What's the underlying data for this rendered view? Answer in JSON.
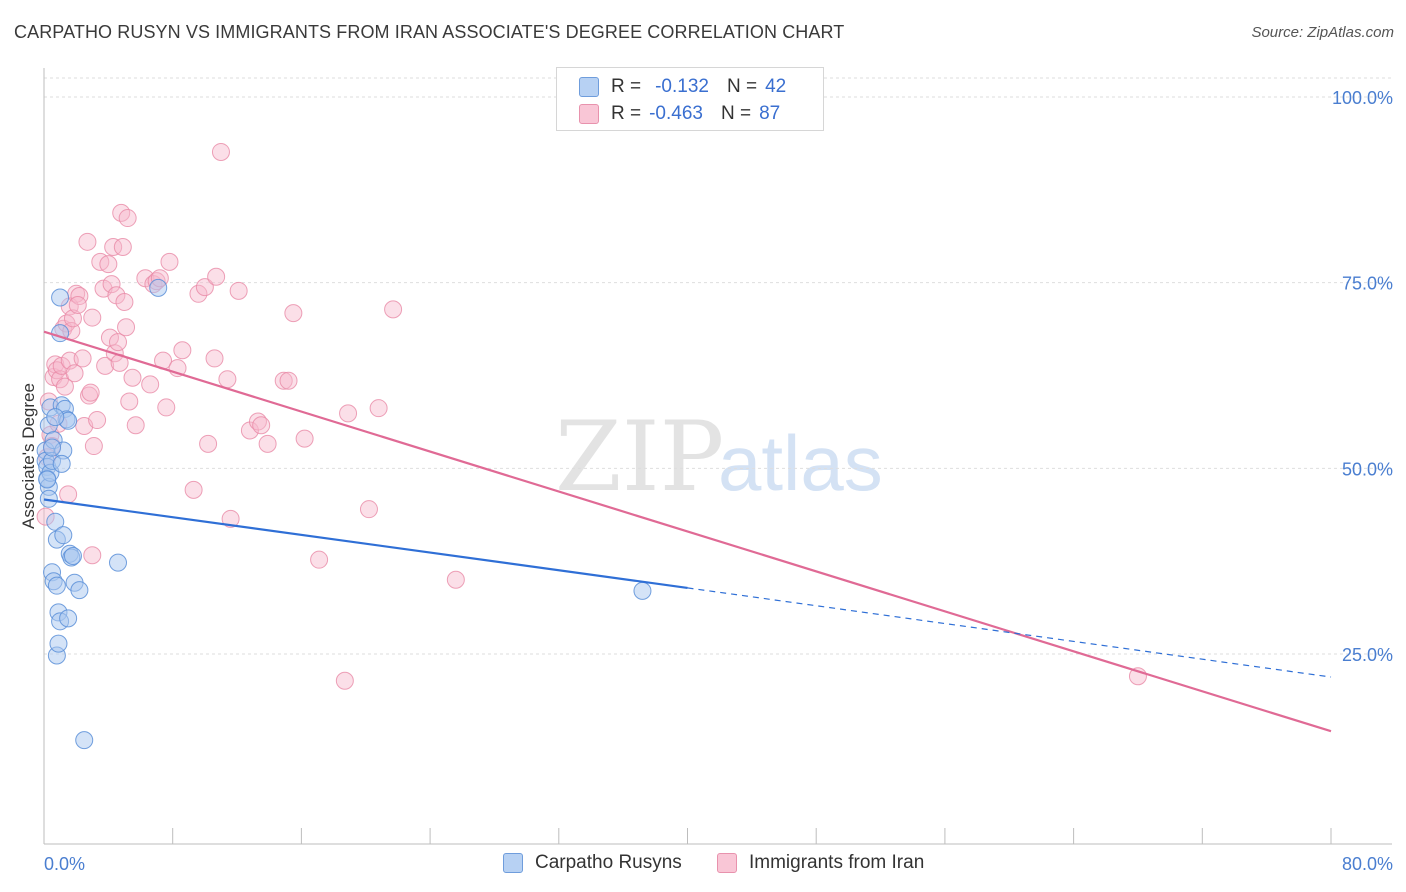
{
  "header": {
    "title": "CARPATHO RUSYN VS IMMIGRANTS FROM IRAN ASSOCIATE'S DEGREE CORRELATION CHART",
    "source": "Source: ZipAtlas.com"
  },
  "legend_top": {
    "rows": [
      {
        "r_label": "R =",
        "r_value": "-0.132",
        "n_label": "N =",
        "n_value": "42"
      },
      {
        "r_label": "R =",
        "r_value": "-0.463",
        "n_label": "N =",
        "n_value": "87"
      }
    ]
  },
  "legend_bottom": {
    "items": [
      {
        "label": "Carpatho Rusyns"
      },
      {
        "label": "Immigrants from Iran"
      }
    ]
  },
  "watermark": {
    "zip": "ZIP",
    "atlas": "atlas"
  },
  "colors": {
    "blue_fill": "#a9c8f0",
    "blue_stroke": "#5a8fd8",
    "blue_line": "#2f6fd6",
    "pink_fill": "#f6b9cb",
    "pink_stroke": "#e88aa6",
    "pink_line": "#e06a95",
    "tick_text": "#4a7ed0",
    "grid": "#dedede"
  },
  "chart_data": {
    "type": "scatter",
    "title": "CARPATHO RUSYN VS IMMIGRANTS FROM IRAN ASSOCIATE'S DEGREE CORRELATION CHART",
    "xlabel": "",
    "ylabel": "Associate's Degree",
    "xlim": [
      0,
      80
    ],
    "ylim": [
      0,
      100
    ],
    "x_tick_labels": [
      "0.0%",
      "80.0%"
    ],
    "y_ticks": [
      25,
      50,
      75,
      100
    ],
    "y_tick_labels": [
      "25.0%",
      "50.0%",
      "75.0%",
      "100.0%"
    ],
    "grid": true,
    "legend_position": "top-center",
    "series": [
      {
        "name": "Carpatho Rusyns",
        "r": -0.132,
        "n": 42,
        "trend": {
          "x": [
            0,
            40
          ],
          "y": [
            45.8,
            33.9
          ],
          "dashed_to": [
            80,
            21.9
          ]
        },
        "points": [
          [
            0.1,
            52.4
          ],
          [
            0.1,
            51.0
          ],
          [
            0.2,
            50.2
          ],
          [
            0.2,
            48.6
          ],
          [
            0.3,
            47.5
          ],
          [
            0.3,
            55.8
          ],
          [
            0.4,
            58.2
          ],
          [
            0.4,
            49.4
          ],
          [
            0.5,
            36.0
          ],
          [
            0.5,
            51.0
          ],
          [
            0.6,
            53.8
          ],
          [
            0.6,
            34.8
          ],
          [
            0.7,
            42.8
          ],
          [
            0.8,
            40.4
          ],
          [
            0.8,
            34.2
          ],
          [
            0.8,
            24.8
          ],
          [
            0.9,
            26.4
          ],
          [
            0.9,
            30.6
          ],
          [
            1.0,
            29.4
          ],
          [
            1.0,
            68.2
          ],
          [
            1.0,
            73.0
          ],
          [
            1.1,
            58.5
          ],
          [
            1.2,
            52.4
          ],
          [
            1.2,
            41.0
          ],
          [
            1.3,
            58.0
          ],
          [
            1.4,
            56.6
          ],
          [
            1.5,
            56.4
          ],
          [
            1.5,
            29.8
          ],
          [
            1.6,
            38.5
          ],
          [
            1.7,
            38.0
          ],
          [
            1.8,
            38.2
          ],
          [
            1.9,
            34.6
          ],
          [
            2.2,
            33.6
          ],
          [
            2.5,
            13.4
          ],
          [
            4.6,
            37.3
          ],
          [
            7.1,
            74.3
          ],
          [
            37.2,
            33.5
          ],
          [
            0.2,
            48.5
          ],
          [
            0.3,
            45.9
          ],
          [
            0.5,
            52.8
          ],
          [
            1.1,
            50.6
          ],
          [
            0.7,
            56.9
          ]
        ]
      },
      {
        "name": "Immigrants from Iran",
        "r": -0.463,
        "n": 87,
        "trend": {
          "x": [
            0,
            80
          ],
          "y": [
            68.4,
            14.6
          ]
        },
        "points": [
          [
            0.1,
            43.5
          ],
          [
            0.3,
            59.0
          ],
          [
            0.4,
            54.5
          ],
          [
            0.5,
            53.0
          ],
          [
            0.6,
            62.3
          ],
          [
            0.7,
            64.0
          ],
          [
            0.8,
            63.2
          ],
          [
            1.0,
            62.0
          ],
          [
            1.1,
            63.8
          ],
          [
            1.2,
            68.8
          ],
          [
            1.3,
            61.0
          ],
          [
            1.4,
            69.5
          ],
          [
            1.5,
            46.5
          ],
          [
            1.6,
            71.8
          ],
          [
            1.6,
            64.5
          ],
          [
            1.7,
            68.5
          ],
          [
            1.8,
            70.2
          ],
          [
            2.0,
            73.5
          ],
          [
            2.2,
            73.2
          ],
          [
            2.4,
            64.8
          ],
          [
            2.5,
            55.7
          ],
          [
            2.7,
            80.5
          ],
          [
            2.8,
            59.8
          ],
          [
            2.9,
            60.2
          ],
          [
            3.0,
            70.3
          ],
          [
            3.1,
            53.0
          ],
          [
            3.3,
            56.5
          ],
          [
            3.5,
            77.8
          ],
          [
            3.7,
            74.2
          ],
          [
            3.8,
            63.8
          ],
          [
            4.0,
            77.5
          ],
          [
            4.1,
            67.6
          ],
          [
            4.2,
            74.8
          ],
          [
            4.3,
            79.8
          ],
          [
            4.4,
            65.5
          ],
          [
            4.5,
            73.3
          ],
          [
            4.6,
            67.0
          ],
          [
            4.7,
            64.2
          ],
          [
            4.8,
            84.4
          ],
          [
            4.9,
            79.8
          ],
          [
            5.0,
            72.4
          ],
          [
            5.1,
            69.0
          ],
          [
            5.2,
            83.7
          ],
          [
            5.3,
            59.0
          ],
          [
            5.5,
            62.2
          ],
          [
            5.7,
            55.8
          ],
          [
            6.3,
            75.6
          ],
          [
            6.6,
            61.3
          ],
          [
            6.8,
            74.8
          ],
          [
            7.0,
            75.2
          ],
          [
            7.2,
            75.6
          ],
          [
            7.4,
            64.5
          ],
          [
            7.6,
            58.2
          ],
          [
            7.8,
            77.8
          ],
          [
            8.3,
            63.5
          ],
          [
            8.6,
            65.9
          ],
          [
            9.3,
            47.1
          ],
          [
            9.6,
            73.5
          ],
          [
            10.0,
            74.4
          ],
          [
            10.2,
            53.3
          ],
          [
            10.6,
            64.8
          ],
          [
            10.7,
            75.8
          ],
          [
            11.0,
            92.6
          ],
          [
            11.4,
            62.0
          ],
          [
            11.6,
            43.2
          ],
          [
            12.1,
            73.9
          ],
          [
            12.8,
            55.1
          ],
          [
            13.3,
            56.3
          ],
          [
            13.5,
            55.8
          ],
          [
            13.9,
            53.3
          ],
          [
            14.9,
            61.8
          ],
          [
            15.2,
            61.8
          ],
          [
            15.5,
            70.9
          ],
          [
            16.2,
            54.0
          ],
          [
            17.1,
            37.7
          ],
          [
            18.7,
            21.4
          ],
          [
            18.9,
            57.4
          ],
          [
            20.2,
            44.5
          ],
          [
            20.8,
            58.1
          ],
          [
            21.7,
            71.4
          ],
          [
            25.6,
            35.0
          ],
          [
            68.0,
            22.0
          ],
          [
            0.2,
            51.5
          ],
          [
            0.9,
            56.0
          ],
          [
            1.9,
            62.8
          ],
          [
            2.1,
            72.0
          ],
          [
            3.0,
            38.3
          ]
        ]
      }
    ]
  }
}
